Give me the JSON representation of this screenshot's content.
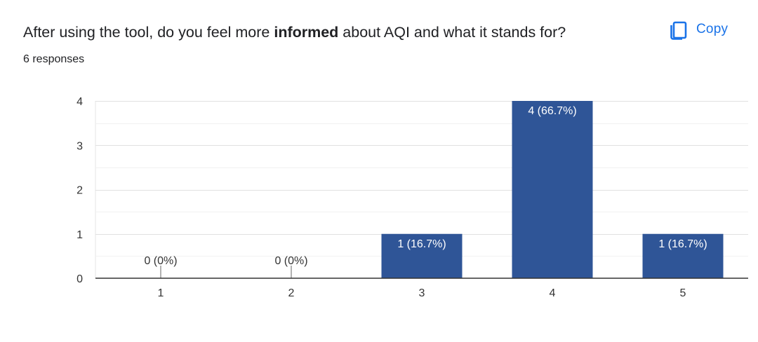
{
  "question": {
    "prefix": "After using the tool, do you feel more ",
    "bold": "informed",
    "suffix": " about AQI and what it stands for?"
  },
  "responses_text": "6 responses",
  "copy_button": {
    "label": "Copy",
    "icon": "copy-icon"
  },
  "colors": {
    "bar": "#2f5597",
    "accent": "#1a73e8",
    "gridline": "#e6e6e6",
    "baseline": "#333333"
  },
  "chart_data": {
    "type": "bar",
    "categories": [
      "1",
      "2",
      "3",
      "4",
      "5"
    ],
    "values": [
      0,
      0,
      1,
      4,
      1
    ],
    "data_labels": [
      "0 (0%)",
      "0 (0%)",
      "1 (16.7%)",
      "4 (66.7%)",
      "1 (16.7%)"
    ],
    "y_ticks": [
      "0",
      "1",
      "2",
      "3",
      "4"
    ],
    "ylim": [
      0,
      4
    ],
    "grid": true
  }
}
